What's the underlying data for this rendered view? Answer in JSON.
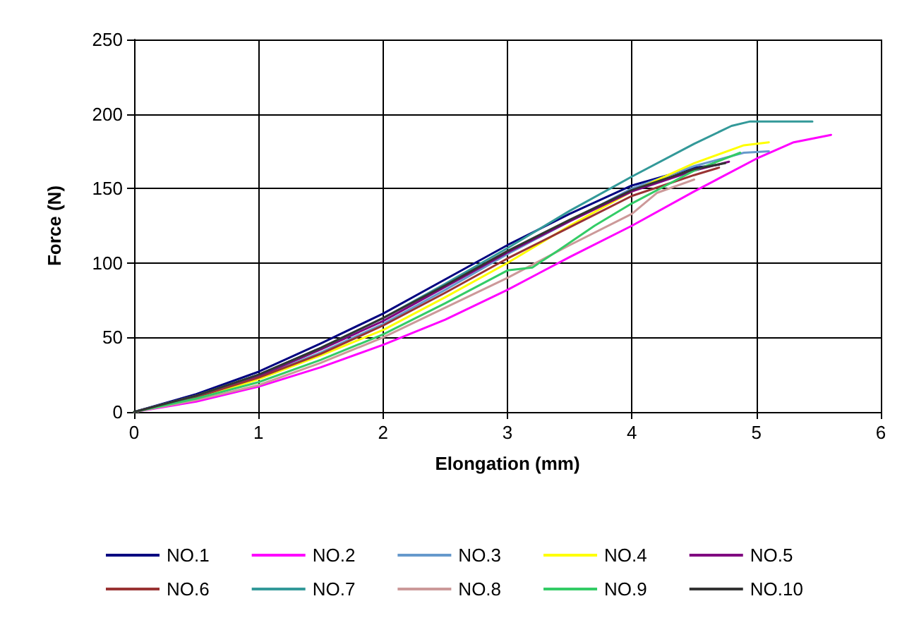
{
  "chart_data": {
    "type": "line",
    "xlabel": "Elongation (mm)",
    "ylabel": "Force (N)",
    "xlim": [
      0,
      6
    ],
    "xticks": [
      0,
      1,
      2,
      3,
      4,
      5,
      6
    ],
    "ylim": [
      0,
      250
    ],
    "yticks": [
      0,
      50,
      100,
      150,
      200,
      250
    ],
    "grid": true,
    "legend": "bottom",
    "marker": "none",
    "line_style": "solid",
    "series": [
      {
        "name": "NO.1",
        "color": "#000080",
        "x": [
          0,
          0.5,
          1,
          1.5,
          2,
          2.5,
          3,
          3.5,
          4,
          4.5,
          4.7
        ],
        "values": [
          0,
          12,
          27,
          46,
          66,
          89,
          112,
          133,
          152,
          164,
          166
        ]
      },
      {
        "name": "NO.2",
        "color": "#ff00ff",
        "x": [
          0,
          0.5,
          1,
          1.5,
          2,
          2.5,
          3,
          3.5,
          4,
          4.5,
          5,
          5.3,
          5.6
        ],
        "values": [
          0,
          7,
          17,
          30,
          45,
          62,
          82,
          104,
          125,
          148,
          170,
          181,
          186
        ]
      },
      {
        "name": "NO.3",
        "color": "#6699cc",
        "x": [
          0,
          0.5,
          1,
          1.5,
          2,
          2.5,
          3,
          3.5,
          4,
          4.5,
          4.9,
          5.1
        ],
        "values": [
          0,
          10,
          23,
          40,
          59,
          82,
          106,
          128,
          150,
          165,
          174,
          175
        ]
      },
      {
        "name": "NO.4",
        "color": "#ffff00",
        "x": [
          0,
          0.5,
          1,
          1.5,
          2,
          2.5,
          3,
          3.5,
          4,
          4.5,
          4.9,
          5.1
        ],
        "values": [
          0,
          9,
          22,
          38,
          55,
          77,
          100,
          125,
          148,
          167,
          179,
          181
        ]
      },
      {
        "name": "NO.5",
        "color": "#800080",
        "x": [
          0,
          0.5,
          1,
          1.5,
          2,
          2.5,
          3,
          3.5,
          4,
          4.5,
          4.78
        ],
        "values": [
          0,
          11,
          24,
          42,
          61,
          84,
          107,
          128,
          148,
          162,
          168
        ]
      },
      {
        "name": "NO.6",
        "color": "#993333",
        "x": [
          0,
          0.5,
          1,
          1.5,
          2,
          2.5,
          3,
          3.5,
          4,
          4.5,
          4.7
        ],
        "values": [
          0,
          10,
          23,
          39,
          58,
          80,
          103,
          124,
          145,
          159,
          164
        ]
      },
      {
        "name": "NO.7",
        "color": "#339999",
        "x": [
          0,
          0.5,
          1,
          1.5,
          2,
          2.5,
          3,
          3.5,
          4,
          4.5,
          4.8,
          4.95,
          5.45
        ],
        "values": [
          0,
          11,
          25,
          43,
          63,
          86,
          110,
          135,
          158,
          180,
          192,
          195,
          195
        ]
      },
      {
        "name": "NO.8",
        "color": "#cc9999",
        "x": [
          0,
          0.5,
          1,
          1.5,
          2,
          2.5,
          3,
          3.5,
          4,
          4.2,
          4.5
        ],
        "values": [
          0,
          8,
          18,
          33,
          50,
          70,
          90,
          112,
          133,
          147,
          156
        ]
      },
      {
        "name": "NO.9",
        "color": "#33cc66",
        "x": [
          0,
          0.5,
          1,
          1.5,
          2,
          2.5,
          3,
          3.2,
          3.4,
          3.7,
          4,
          4.5,
          4.87
        ],
        "values": [
          0,
          9,
          20,
          35,
          52,
          73,
          95,
          97,
          108,
          125,
          140,
          162,
          174
        ]
      },
      {
        "name": "NO.10",
        "color": "#333333",
        "x": [
          0,
          0.5,
          1,
          1.5,
          2,
          2.5,
          3,
          3.5,
          4,
          4.5,
          4.75
        ],
        "values": [
          0,
          11,
          25,
          43,
          63,
          85,
          108,
          129,
          149,
          163,
          167
        ]
      }
    ]
  }
}
